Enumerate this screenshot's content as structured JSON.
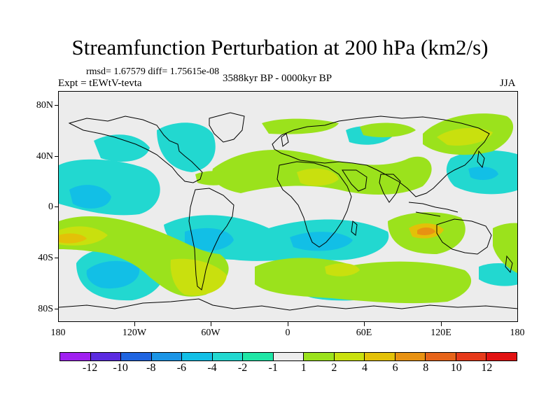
{
  "title": "Streamfunction Perturbation at 200 hPa (km2/s)",
  "stats_line": "rmsd= 1.67579 diff= 1.75615e-08",
  "experiment": "Expt = tEWtV-tevta",
  "period": "3588kyr BP - 0000kyr BP",
  "season": "JJA",
  "map": {
    "lat_labels": [
      "80N",
      "40N",
      "0",
      "40S",
      "80S"
    ],
    "lon_labels": [
      "180",
      "120W",
      "60W",
      "0",
      "60E",
      "120E",
      "180"
    ],
    "background_color": "#ececec",
    "coastline_color": "#000000"
  },
  "colorbar": {
    "labels": [
      "-12",
      "-10",
      "-8",
      "-6",
      "-4",
      "-2",
      "-1",
      "1",
      "2",
      "4",
      "6",
      "8",
      "10",
      "12"
    ],
    "colors": [
      "#a020f0",
      "#5b2be0",
      "#1f64e0",
      "#1b95e6",
      "#12bfe6",
      "#22d8d0",
      "#1fe6a6",
      "#ececec",
      "#9be21c",
      "#c9e00e",
      "#e3c108",
      "#e89212",
      "#e6641a",
      "#e63a1a",
      "#e21212"
    ]
  }
}
